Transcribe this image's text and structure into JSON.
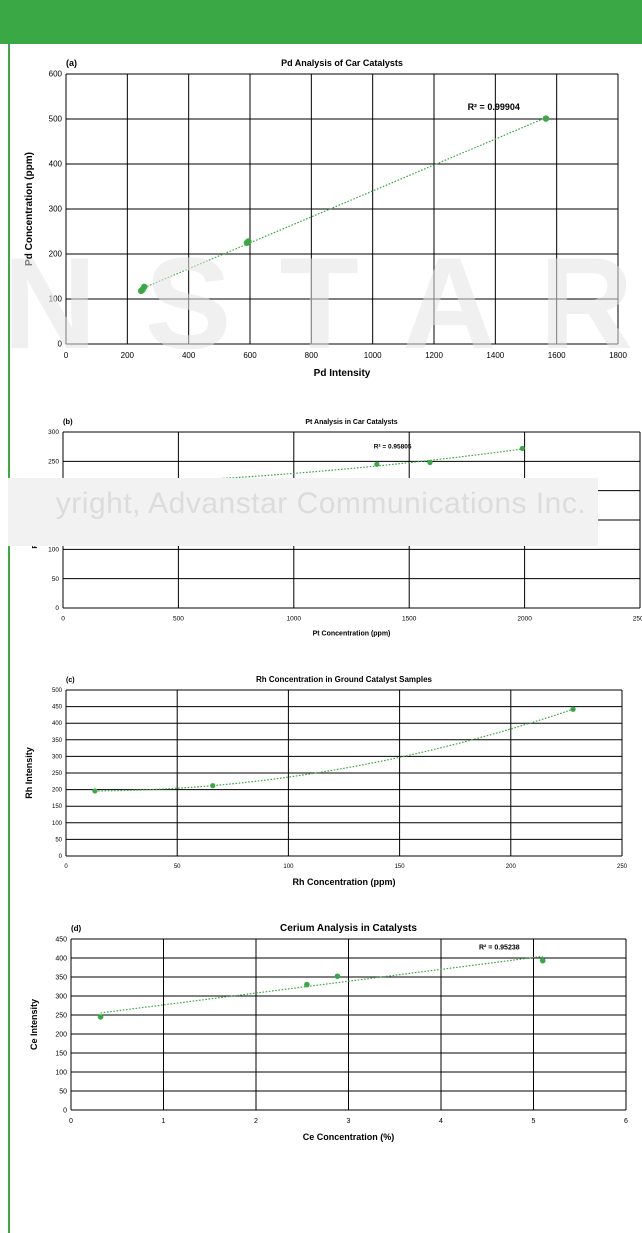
{
  "colors": {
    "accent": "#39a845",
    "grid": "#000000",
    "marker": "#39a845",
    "trend": "#39a845",
    "watermark": "#e3e3e3"
  },
  "watermark": {
    "text": "N S T A R",
    "copyright": "yright, Advanstar Communications Inc."
  },
  "chart_data": [
    {
      "type": "scatter",
      "panel_label": "(a)",
      "title": "Pd Analysis of Car Catalysts",
      "xlabel": "Pd Intensity",
      "ylabel": "Pd Concentration (ppm)",
      "xlim": [
        0,
        1800
      ],
      "ylim": [
        0,
        600
      ],
      "xticks": [
        0,
        200,
        400,
        600,
        800,
        1000,
        1200,
        1400,
        1600,
        1800
      ],
      "yticks": [
        0,
        100,
        200,
        300,
        400,
        500,
        600
      ],
      "trendline": "linear",
      "annotation": "R² = 0.99904",
      "series": [
        {
          "x": [
            245,
            250,
            255,
            590,
            595,
            1565
          ],
          "y": [
            118,
            121,
            127,
            225,
            228,
            501
          ]
        }
      ]
    },
    {
      "type": "scatter",
      "panel_label": "(b)",
      "title": "Pt Analysis in Car Catalysts",
      "xlabel": "Pt Concentration (ppm)",
      "ylabel": "Pt Intensity Ratio",
      "xlim": [
        0,
        2500
      ],
      "ylim": [
        0,
        300
      ],
      "xticks": [
        0,
        500,
        1000,
        1500,
        2000,
        2500
      ],
      "yticks": [
        0,
        50,
        100,
        150,
        200,
        250,
        300
      ],
      "trendline": "polynomial",
      "annotation": "R² = 0.95805",
      "series": [
        {
          "x": [
            430,
            1360,
            1590,
            1990
          ],
          "y": [
            215,
            245,
            248,
            272
          ]
        }
      ]
    },
    {
      "type": "scatter",
      "panel_label": "(c)",
      "title": "Rh Concentration in Ground Catalyst Samples",
      "xlabel": "Rh Concentration (ppm)",
      "ylabel": "Rh Intensity",
      "xlim": [
        0,
        250
      ],
      "ylim": [
        0,
        500
      ],
      "xticks": [
        0,
        50,
        100,
        150,
        200,
        250
      ],
      "yticks": [
        0,
        50,
        100,
        150,
        200,
        250,
        300,
        350,
        400,
        450,
        500
      ],
      "trendline": "polynomial",
      "annotation": "",
      "series": [
        {
          "x": [
            13,
            66,
            228
          ],
          "y": [
            196,
            212,
            442
          ]
        }
      ]
    },
    {
      "type": "scatter",
      "panel_label": "(d)",
      "title": "Cerium Analysis in Catalysts",
      "xlabel": "Ce Concentration (%)",
      "ylabel": "Ce Intensity",
      "xlim": [
        0,
        6
      ],
      "ylim": [
        0,
        450
      ],
      "xticks": [
        0,
        1,
        2,
        3,
        4,
        5,
        6
      ],
      "yticks": [
        0,
        50,
        100,
        150,
        200,
        250,
        300,
        350,
        400,
        450
      ],
      "trendline": "linear",
      "annotation": "R² = 0.95238",
      "series": [
        {
          "x": [
            0.32,
            2.55,
            2.88,
            5.1
          ],
          "y": [
            245,
            330,
            352,
            393
          ]
        }
      ]
    }
  ]
}
